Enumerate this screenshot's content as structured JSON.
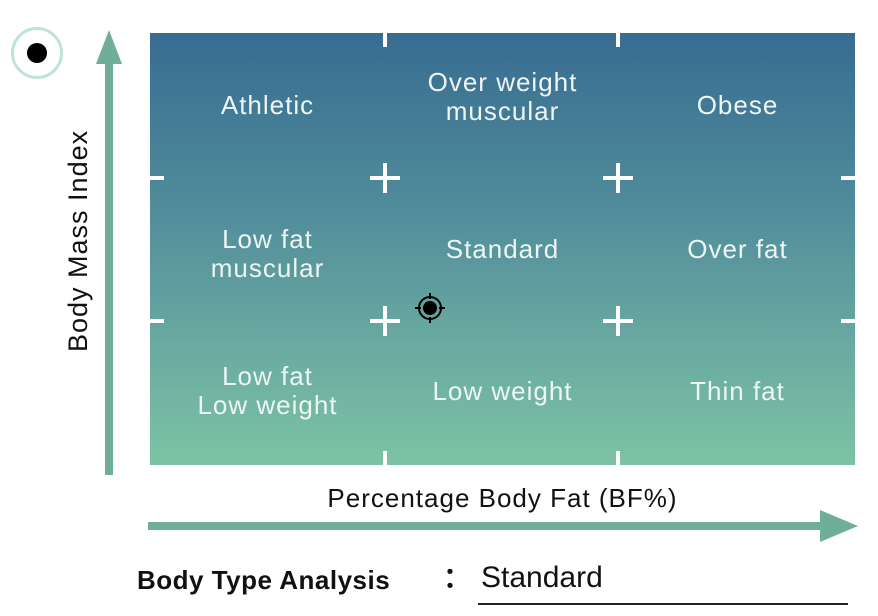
{
  "axes": {
    "y_title": "Body Mass Index",
    "x_title": "Percentage Body Fat (BF%)"
  },
  "grid": {
    "rows": [
      [
        "Athletic",
        "Over weight\nmuscular",
        "Obese"
      ],
      [
        "Low fat\nmuscular",
        "Standard",
        "Over fat"
      ],
      [
        "Low fat\nLow weight",
        "Low weight",
        "Thin fat"
      ]
    ]
  },
  "marker": {
    "cell": "Standard",
    "icon": "crosshair-target-icon"
  },
  "result": {
    "label": "Body Type Analysis",
    "colon": "：",
    "value": "Standard"
  },
  "colors": {
    "panel_top": "#386c91",
    "panel_bottom": "#7cc3a4",
    "axis_arrow": "#6fae99",
    "cell_text": "#eef6f4"
  }
}
